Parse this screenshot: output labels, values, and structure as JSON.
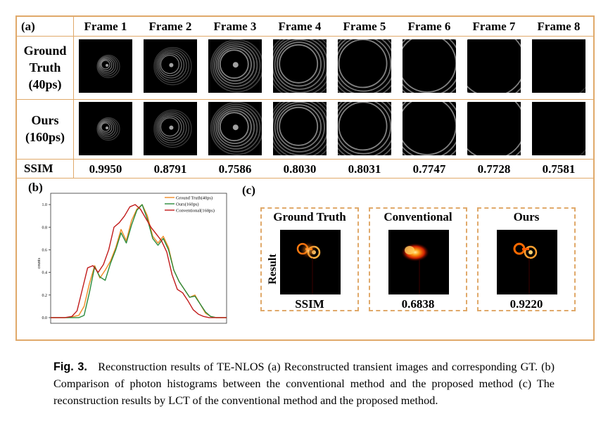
{
  "panel_a": {
    "label": "(a)",
    "frames": [
      "Frame 1",
      "Frame 2",
      "Frame 3",
      "Frame 4",
      "Frame 5",
      "Frame 6",
      "Frame 7",
      "Frame 8"
    ],
    "rows": [
      {
        "line1": "Ground",
        "line2": "Truth",
        "line3": "(40ps)"
      },
      {
        "line1": "Ours",
        "line2": "(160ps)",
        "line3": ""
      }
    ],
    "ssim_label": "SSIM",
    "ssim_values": [
      "0.9950",
      "0.8791",
      "0.7586",
      "0.8030",
      "0.8031",
      "0.7747",
      "0.7728",
      "0.7581"
    ]
  },
  "panel_b": {
    "label": "(b)"
  },
  "panel_c": {
    "label": "(c)",
    "row_label": "Result",
    "ssim_label": "SSIM",
    "boxes": [
      {
        "title": "Ground Truth",
        "value": ""
      },
      {
        "title": "Conventional",
        "value": "0.6838"
      },
      {
        "title": "Ours",
        "value": "0.9220"
      }
    ]
  },
  "chart_data": {
    "type": "line",
    "title": "",
    "xlabel": "",
    "ylabel": "counts",
    "ylim": [
      -0.05,
      1.1
    ],
    "yticks": [
      "0.0",
      "0.2",
      "0.4",
      "0.6",
      "0.8",
      "1.0"
    ],
    "grid": false,
    "legend_position": "top-right",
    "series": [
      {
        "name": "Ground Truth(40ps)",
        "color": "#f08a24",
        "x": [
          0,
          10,
          16,
          19,
          22,
          25,
          28,
          31,
          34,
          37,
          40,
          43,
          46,
          49,
          52,
          55,
          58,
          61,
          64,
          67,
          70,
          73,
          76,
          79,
          82,
          85,
          88,
          91,
          94,
          97,
          100
        ],
        "y": [
          0.0,
          0.0,
          0.02,
          0.1,
          0.3,
          0.46,
          0.35,
          0.42,
          0.5,
          0.62,
          0.78,
          0.68,
          0.86,
          0.96,
          1.0,
          0.9,
          0.72,
          0.66,
          0.72,
          0.62,
          0.42,
          0.32,
          0.25,
          0.18,
          0.2,
          0.12,
          0.04,
          0.01,
          0.0,
          0.0,
          0.0
        ]
      },
      {
        "name": "Ours(160ps)",
        "color": "#2a8a3a",
        "x": [
          0,
          10,
          16,
          19,
          22,
          25,
          28,
          31,
          34,
          37,
          40,
          43,
          46,
          49,
          52,
          55,
          58,
          61,
          64,
          67,
          70,
          73,
          76,
          79,
          82,
          85,
          88,
          91,
          94,
          97,
          100
        ],
        "y": [
          0.0,
          0.0,
          0.0,
          0.02,
          0.22,
          0.45,
          0.36,
          0.33,
          0.48,
          0.6,
          0.75,
          0.66,
          0.82,
          0.95,
          1.0,
          0.87,
          0.7,
          0.64,
          0.7,
          0.6,
          0.42,
          0.32,
          0.25,
          0.18,
          0.19,
          0.12,
          0.05,
          0.01,
          0.0,
          0.0,
          0.0
        ]
      },
      {
        "name": "Conventional(160ps)",
        "color": "#c11a1a",
        "x": [
          0,
          8,
          12,
          15,
          18,
          21,
          24,
          27,
          30,
          33,
          36,
          39,
          42,
          45,
          48,
          51,
          54,
          57,
          60,
          63,
          66,
          69,
          72,
          75,
          78,
          81,
          84,
          87,
          90,
          95,
          100
        ],
        "y": [
          0.0,
          0.0,
          0.01,
          0.06,
          0.25,
          0.44,
          0.46,
          0.4,
          0.47,
          0.6,
          0.8,
          0.84,
          0.9,
          0.98,
          1.0,
          0.96,
          0.88,
          0.8,
          0.74,
          0.68,
          0.58,
          0.38,
          0.25,
          0.22,
          0.15,
          0.07,
          0.03,
          0.01,
          0.0,
          0.0,
          0.0
        ]
      }
    ]
  },
  "caption": {
    "fig_label": "Fig. 3.",
    "text": "Reconstruction results of TE-NLOS (a) Reconstructed transient images and corresponding GT. (b) Comparison of photon histograms between the conventional method and the proposed method (c) The reconstruction results by LCT of the conventional method and the proposed method."
  },
  "colors": {
    "border": "#e0a96a",
    "gt": "#f08a24",
    "ours": "#2a8a3a",
    "conv": "#c11a1a"
  }
}
